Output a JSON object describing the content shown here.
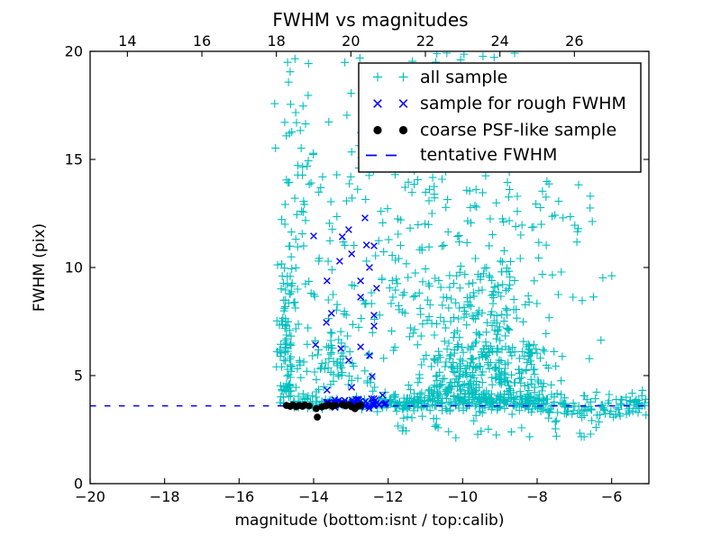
{
  "figure": {
    "title": "FWHM vs magnitudes",
    "xlabel": "magnitude (bottom:isnt / top:calib)",
    "ylabel": "FWHM (pix)",
    "background_color": "#ffffff",
    "frame_color": "#000000"
  },
  "legend": {
    "position": "upper right",
    "entries": [
      {
        "label": "all sample",
        "marker": "plus",
        "color": "#00bfbf"
      },
      {
        "label": "sample for rough FWHM",
        "marker": "x",
        "color": "#0000ff"
      },
      {
        "label": "coarse PSF-like sample",
        "marker": "dot",
        "color": "#000000"
      },
      {
        "label": "tentative FWHM",
        "marker": "dashed-line",
        "color": "#0000ff"
      }
    ]
  },
  "chart_data": {
    "type": "scatter",
    "title": "FWHM vs magnitudes",
    "xlabel": "magnitude (bottom:isnt / top:calib)",
    "ylabel": "FWHM (pix)",
    "xlim": [
      -20,
      -5
    ],
    "ylim": [
      0,
      20
    ],
    "grid": false,
    "legend_position": "upper right",
    "x_axis_bottom": {
      "name": "isnt magnitude",
      "ticks": [
        -20,
        -18,
        -16,
        -14,
        -12,
        -10,
        -8,
        -6
      ],
      "labels": [
        "−20",
        "−18",
        "−16",
        "−14",
        "−12",
        "−10",
        "−8",
        "−6"
      ]
    },
    "x_axis_top": {
      "name": "calib magnitude",
      "ticks": [
        14,
        16,
        18,
        20,
        22,
        24,
        26
      ],
      "labels": [
        "14",
        "16",
        "18",
        "20",
        "22",
        "24",
        "26"
      ],
      "offset_from_bottom_axis": 33
    },
    "y_axis": {
      "ticks": [
        0,
        5,
        10,
        15,
        20
      ],
      "labels": [
        "0",
        "5",
        "10",
        "15",
        "20"
      ]
    },
    "tentative_fwhm": 3.6,
    "seed": 11,
    "series": [
      {
        "name": "all sample",
        "marker": "plus",
        "color": "#00bfbf",
        "clusters": [
          {
            "n": 95,
            "x": {
              "d": "g",
              "m": -14.72,
              "s": 0.12
            },
            "y": {
              "d": "u",
              "a": 3.7,
              "b": 10
            }
          },
          {
            "n": 40,
            "x": {
              "d": "g",
              "m": -14.55,
              "s": 0.22
            },
            "y": {
              "d": "u",
              "a": 10,
              "b": 20
            }
          },
          {
            "n": 70,
            "x": {
              "d": "u",
              "a": -14.5,
              "b": -12.3
            },
            "y": {
              "d": "u",
              "a": 4,
              "b": 9
            }
          },
          {
            "n": 55,
            "x": {
              "d": "u",
              "a": -14.5,
              "b": -12.2
            },
            "y": {
              "d": "u",
              "a": 9,
              "b": 20
            }
          },
          {
            "n": 30,
            "x": {
              "d": "g",
              "m": -13.5,
              "s": 0.25
            },
            "y": {
              "d": "g",
              "m": 5.6,
              "s": 0.8
            }
          },
          {
            "n": 80,
            "x": {
              "d": "u",
              "a": -14.55,
              "b": -12.3
            },
            "y": {
              "d": "g",
              "m": 3.7,
              "s": 0.12
            }
          },
          {
            "n": 260,
            "x": {
              "d": "u",
              "a": -12.3,
              "b": -7.8
            },
            "y": {
              "d": "g",
              "m": 3.75,
              "s": 0.18
            }
          },
          {
            "n": 90,
            "x": {
              "d": "u",
              "a": -7.8,
              "b": -5.05
            },
            "y": {
              "d": "g",
              "m": 3.55,
              "s": 0.33
            }
          },
          {
            "n": 300,
            "x": {
              "d": "g",
              "m": -9.5,
              "s": 1.0
            },
            "y": {
              "d": "u",
              "a": 3.9,
              "b": 6.5
            }
          },
          {
            "n": 170,
            "x": {
              "d": "g",
              "m": -9.8,
              "s": 1.2
            },
            "y": {
              "d": "u",
              "a": 6.5,
              "b": 10
            }
          },
          {
            "n": 80,
            "x": {
              "d": "u",
              "a": -12.2,
              "b": -7.5
            },
            "y": {
              "d": "u",
              "a": 10,
              "b": 14
            }
          },
          {
            "n": 55,
            "x": {
              "d": "u",
              "a": -12.4,
              "b": -8.3
            },
            "y": {
              "d": "u",
              "a": 14,
              "b": 20
            }
          },
          {
            "n": 45,
            "x": {
              "d": "u",
              "a": -11.8,
              "b": -6.2
            },
            "y": {
              "d": "u",
              "a": 2.1,
              "b": 3.4
            }
          },
          {
            "n": 18,
            "x": {
              "d": "u",
              "a": -9.0,
              "b": -6.3
            },
            "y": {
              "d": "u",
              "a": 7.5,
              "b": 14.5
            }
          },
          {
            "n": 12,
            "x": {
              "d": "u",
              "a": -5.6,
              "b": -5.05
            },
            "y": {
              "d": "u",
              "a": 3.0,
              "b": 4.6
            }
          },
          {
            "n": 6,
            "x": {
              "d": "u",
              "a": -7.5,
              "b": -5.8
            },
            "y": {
              "d": "u",
              "a": 5,
              "b": 13
            }
          }
        ]
      },
      {
        "name": "sample for rough FWHM",
        "marker": "x",
        "color": "#0000ff",
        "points": [
          [
            -12.62,
            12.29
          ],
          [
            -13.06,
            11.75
          ],
          [
            -14.0,
            11.46
          ],
          [
            -13.23,
            11.42
          ],
          [
            -12.58,
            11.04
          ],
          [
            -12.38,
            11.0
          ],
          [
            -12.98,
            10.63
          ],
          [
            -13.3,
            10.29
          ],
          [
            -12.5,
            10.0
          ],
          [
            -13.64,
            9.38
          ],
          [
            -12.74,
            9.38
          ],
          [
            -12.31,
            9.04
          ],
          [
            -12.74,
            8.63
          ],
          [
            -13.52,
            7.88
          ],
          [
            -12.38,
            7.79
          ],
          [
            -13.66,
            7.46
          ],
          [
            -12.38,
            7.29
          ],
          [
            -13.95,
            6.42
          ],
          [
            -12.74,
            6.33
          ],
          [
            -13.27,
            6.25
          ],
          [
            -12.5,
            5.92
          ],
          [
            -13.06,
            5.71
          ],
          [
            -12.43,
            4.96
          ],
          [
            -12.98,
            4.46
          ],
          [
            -13.64,
            4.33
          ],
          [
            -12.15,
            4.1
          ]
        ],
        "clusters": [
          {
            "n": 55,
            "x": {
              "d": "u",
              "a": -13.65,
              "b": -12.05
            },
            "y": {
              "d": "g",
              "m": 3.72,
              "s": 0.1
            }
          }
        ]
      },
      {
        "name": "coarse PSF-like sample",
        "marker": "dot",
        "color": "#000000",
        "points": [
          [
            -14.73,
            3.62
          ],
          [
            -14.63,
            3.58
          ],
          [
            -14.56,
            3.64
          ],
          [
            -14.47,
            3.56
          ],
          [
            -14.39,
            3.62
          ],
          [
            -14.3,
            3.58
          ],
          [
            -14.24,
            3.64
          ],
          [
            -14.12,
            3.6
          ],
          [
            -13.93,
            3.47
          ],
          [
            -13.9,
            3.08
          ],
          [
            -13.78,
            3.55
          ],
          [
            -13.68,
            3.6
          ],
          [
            -13.59,
            3.64
          ],
          [
            -13.5,
            3.58
          ],
          [
            -13.42,
            3.62
          ],
          [
            -13.23,
            3.66
          ],
          [
            -13.14,
            3.6
          ],
          [
            -13.05,
            3.64
          ],
          [
            -12.98,
            3.56
          ],
          [
            -12.89,
            3.47
          ],
          [
            -12.81,
            3.6
          ],
          [
            -12.74,
            3.62
          ]
        ]
      },
      {
        "name": "tentative FWHM",
        "type": "hline",
        "linestyle": "dashed",
        "color": "#0000ff",
        "y": 3.6
      }
    ]
  }
}
